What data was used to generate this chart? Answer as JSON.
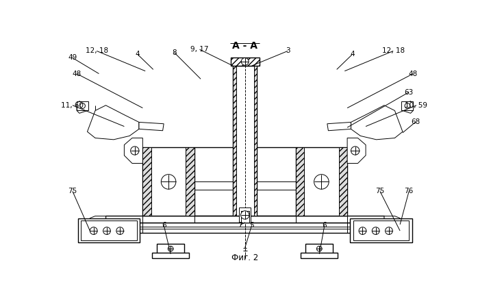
{
  "title": "А - А",
  "subtitle": "Фиг. 2",
  "bg_color": "#ffffff",
  "line_color": "#000000"
}
